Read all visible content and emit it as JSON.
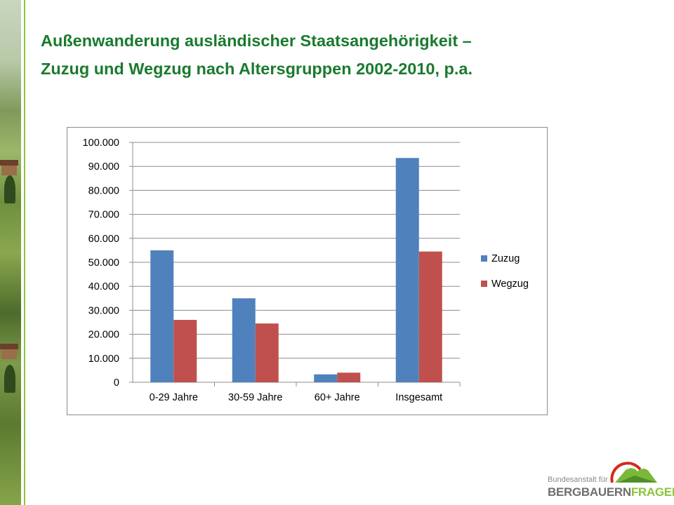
{
  "slide": {
    "title_line1": "Außenwanderung ausländischer Staatsangehörigkeit –",
    "title_line2": "Zuzug und Wegzug nach Altersgruppen 2002-2010, p.a."
  },
  "logo": {
    "small_text": "Bundesanstalt für",
    "big_text_part1": "BERGBAUERN",
    "big_text_part2": "FRAGEN"
  },
  "colors": {
    "title": "#1a7a2e",
    "zuzug": "#4f81bd",
    "wegzug": "#c0504d",
    "accent": "#8cc43c"
  },
  "chart_data": {
    "type": "bar",
    "title": "",
    "xlabel": "",
    "ylabel": "",
    "categories": [
      "0-29 Jahre",
      "30-59 Jahre",
      "60+ Jahre",
      "Insgesamt"
    ],
    "series": [
      {
        "name": "Zuzug",
        "values": [
          55000,
          35000,
          3300,
          93500
        ]
      },
      {
        "name": "Wegzug",
        "values": [
          26000,
          24500,
          4000,
          54500
        ]
      }
    ],
    "ylim": [
      0,
      100000
    ],
    "yticks": [
      0,
      10000,
      20000,
      30000,
      40000,
      50000,
      60000,
      70000,
      80000,
      90000,
      100000
    ],
    "ytick_labels": [
      "0",
      "10.000",
      "20.000",
      "30.000",
      "40.000",
      "50.000",
      "60.000",
      "70.000",
      "80.000",
      "90.000",
      "100.000"
    ],
    "grid": true,
    "legend": "right"
  }
}
